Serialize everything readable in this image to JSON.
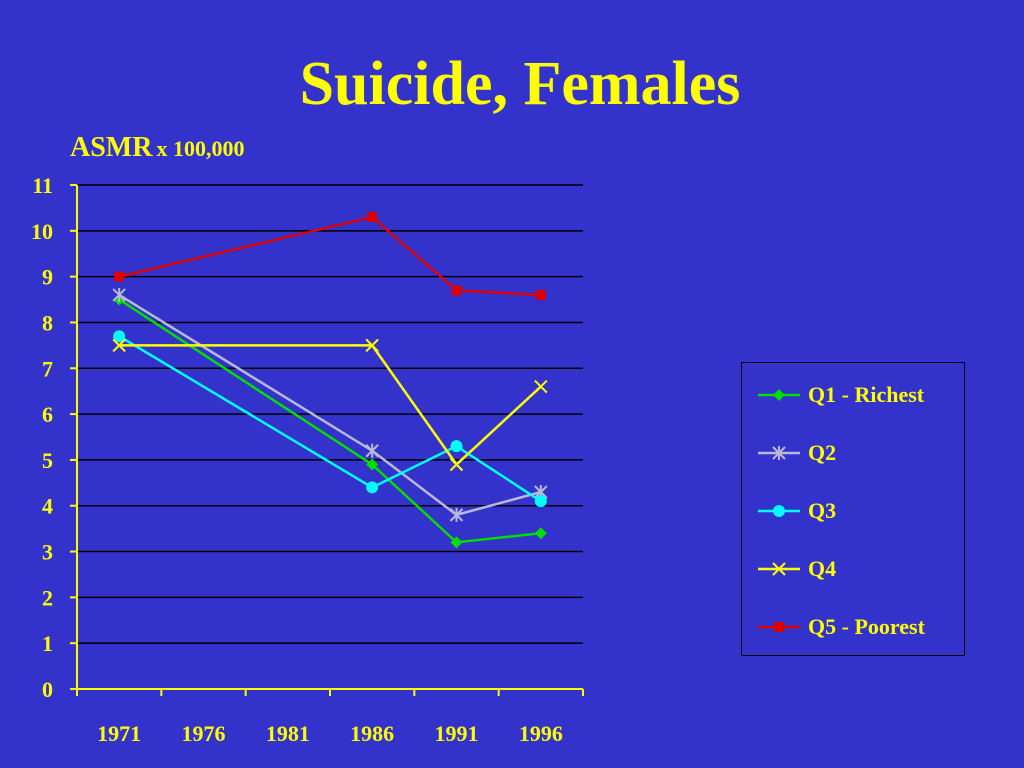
{
  "title": "Suicide, Females",
  "ylabel_main": "ASMR",
  "ylabel_unit": "x 100,000",
  "colors": {
    "background": "#3333cc",
    "text": "#ffff00",
    "gridline": "#000000"
  },
  "chart_data": {
    "type": "line",
    "title": "Suicide, Females",
    "ylabel": "ASMR x 100,000",
    "xlabel": "",
    "categories": [
      "1971",
      "1976",
      "1981",
      "1986",
      "1991",
      "1996"
    ],
    "ylim": [
      0,
      11
    ],
    "yticks": [
      0,
      1,
      2,
      3,
      4,
      5,
      6,
      7,
      8,
      9,
      10,
      11
    ],
    "grid": true,
    "legend_position": "right",
    "series": [
      {
        "name": "Q1 - Richest",
        "color": "#00dd00",
        "marker": "diamond",
        "x": [
          1971,
          1986,
          1991,
          1996
        ],
        "y": [
          8.5,
          4.9,
          3.2,
          3.4
        ]
      },
      {
        "name": "Q2",
        "color": "#b8b8d8",
        "marker": "asterisk",
        "x": [
          1971,
          1986,
          1991,
          1996
        ],
        "y": [
          8.6,
          5.2,
          3.8,
          4.3
        ]
      },
      {
        "name": "Q3",
        "color": "#00ffff",
        "marker": "circle",
        "x": [
          1971,
          1986,
          1991,
          1996
        ],
        "y": [
          7.7,
          4.4,
          5.3,
          4.1
        ]
      },
      {
        "name": "Q4",
        "color": "#ffff00",
        "marker": "x",
        "x": [
          1971,
          1986,
          1991,
          1996
        ],
        "y": [
          7.5,
          7.5,
          4.9,
          6.6
        ]
      },
      {
        "name": "Q5 - Poorest",
        "color": "#dd0000",
        "marker": "square",
        "x": [
          1971,
          1986,
          1991,
          1996
        ],
        "y": [
          9.0,
          10.3,
          8.7,
          8.6
        ]
      }
    ]
  }
}
